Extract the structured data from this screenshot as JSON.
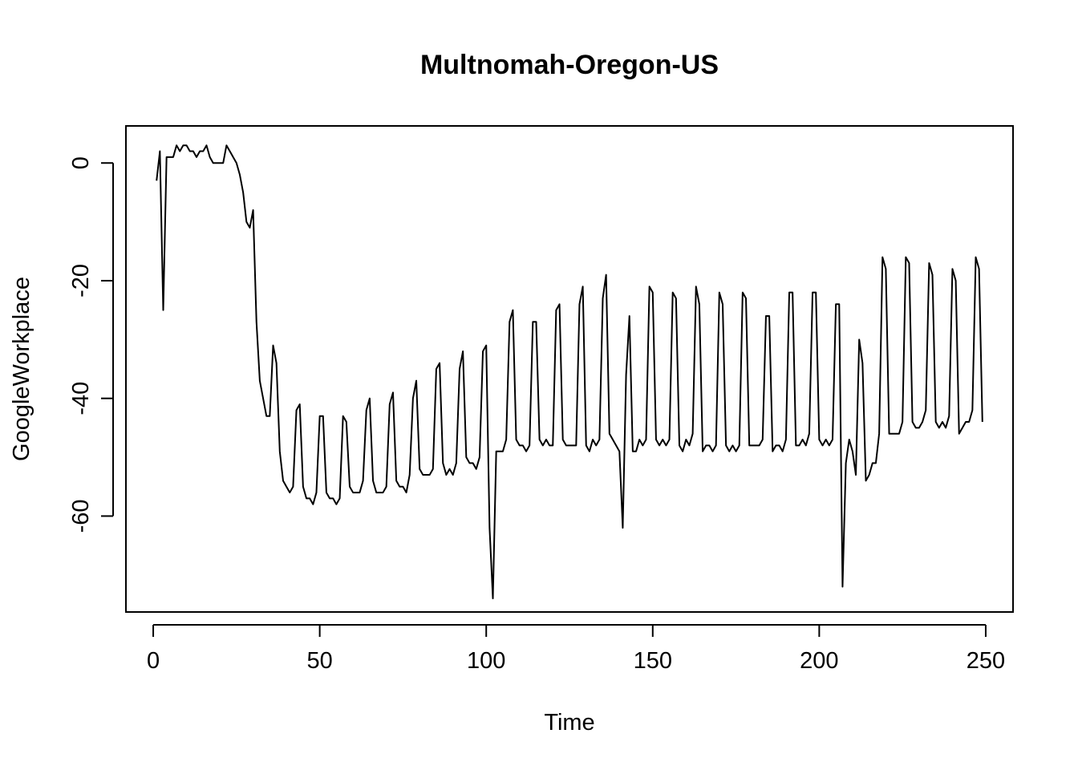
{
  "chart_data": {
    "type": "line",
    "title": "Multnomah-Oregon-US",
    "xlabel": "Time",
    "ylabel": "GoogleWorkplace",
    "xlim": [
      -8.2,
      258.2
    ],
    "ylim": [
      -76.3,
      6.3
    ],
    "x_ticks": [
      0,
      50,
      100,
      150,
      200,
      250
    ],
    "x_tick_labels": [
      "0",
      "50",
      "100",
      "150",
      "200",
      "250"
    ],
    "y_ticks": [
      0,
      -20,
      -40,
      -60
    ],
    "y_tick_labels": [
      "0",
      "-20",
      "-40",
      "-60"
    ],
    "grid": false,
    "legend": "none",
    "series": [
      {
        "name": "GoogleWorkplace",
        "x_start": 1,
        "x_step": 1,
        "values": [
          -3,
          2,
          -25,
          1,
          1,
          1,
          3,
          2,
          3,
          3,
          2,
          2,
          1,
          2,
          2,
          3,
          1,
          0,
          0,
          0,
          0,
          3,
          2,
          1,
          0,
          -2,
          -5,
          -10,
          -11,
          -8,
          -27,
          -37,
          -40,
          -43,
          -43,
          -31,
          -34,
          -49,
          -54,
          -55,
          -56,
          -55,
          -42,
          -41,
          -55,
          -57,
          -57,
          -58,
          -56,
          -43,
          -43,
          -56,
          -57,
          -57,
          -58,
          -57,
          -43,
          -44,
          -55,
          -56,
          -56,
          -56,
          -54,
          -42,
          -40,
          -54,
          -56,
          -56,
          -56,
          -55,
          -41,
          -39,
          -54,
          -55,
          -55,
          -56,
          -53,
          -40,
          -37,
          -52,
          -53,
          -53,
          -53,
          -52,
          -35,
          -34,
          -51,
          -53,
          -52,
          -53,
          -51,
          -35,
          -32,
          -50,
          -51,
          -51,
          -52,
          -50,
          -32,
          -31,
          -62,
          -74,
          -49,
          -49,
          -49,
          -47,
          -27,
          -25,
          -47,
          -48,
          -48,
          -49,
          -48,
          -27,
          -27,
          -47,
          -48,
          -47,
          -48,
          -48,
          -25,
          -24,
          -47,
          -48,
          -48,
          -48,
          -48,
          -24,
          -21,
          -48,
          -49,
          -47,
          -48,
          -47,
          -23,
          -19,
          -46,
          -47,
          -48,
          -49,
          -62,
          -36,
          -26,
          -49,
          -49,
          -47,
          -48,
          -47,
          -21,
          -22,
          -47,
          -48,
          -47,
          -48,
          -47,
          -22,
          -23,
          -48,
          -49,
          -47,
          -48,
          -46,
          -21,
          -24,
          -49,
          -48,
          -48,
          -49,
          -48,
          -22,
          -24,
          -48,
          -49,
          -48,
          -49,
          -48,
          -22,
          -23,
          -48,
          -48,
          -48,
          -48,
          -47,
          -26,
          -26,
          -49,
          -48,
          -48,
          -49,
          -47,
          -22,
          -22,
          -48,
          -48,
          -47,
          -48,
          -46,
          -22,
          -22,
          -47,
          -48,
          -47,
          -48,
          -47,
          -24,
          -24,
          -72,
          -51,
          -47,
          -49,
          -53,
          -30,
          -34,
          -54,
          -53,
          -51,
          -51,
          -46,
          -16,
          -18,
          -46,
          -46,
          -46,
          -46,
          -44,
          -16,
          -17,
          -44,
          -45,
          -45,
          -44,
          -42,
          -17,
          -19,
          -44,
          -45,
          -44,
          -45,
          -43,
          -18,
          -20,
          -46,
          -45,
          -44,
          -44,
          -42,
          -16,
          -18,
          -44
        ]
      }
    ]
  }
}
